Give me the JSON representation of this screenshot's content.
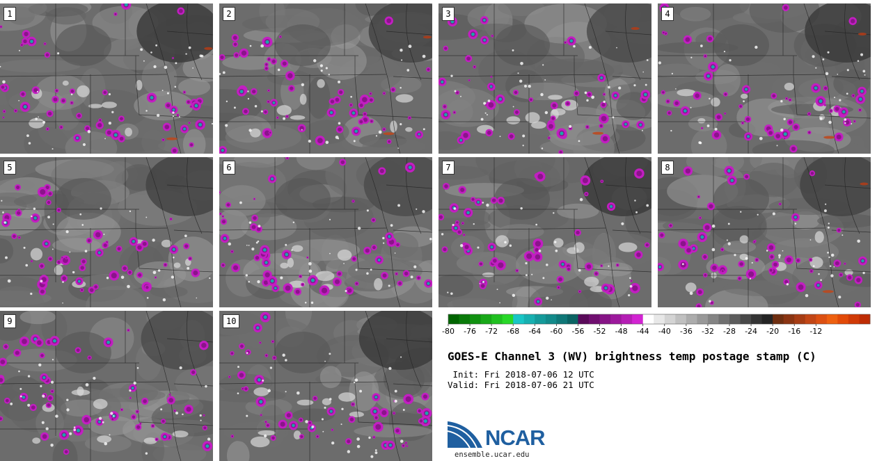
{
  "panels": [
    {
      "label": "1"
    },
    {
      "label": "2"
    },
    {
      "label": "3"
    },
    {
      "label": "4"
    },
    {
      "label": "5"
    },
    {
      "label": "6"
    },
    {
      "label": "7"
    },
    {
      "label": "8"
    },
    {
      "label": "9"
    },
    {
      "label": "10"
    }
  ],
  "colorbar": {
    "ticks": [
      "-80",
      "-76",
      "-72",
      "-68",
      "-64",
      "-60",
      "-56",
      "-52",
      "-48",
      "-44",
      "-40",
      "-36",
      "-32",
      "-28",
      "-24",
      "-20",
      "-16",
      "-12"
    ],
    "colors": [
      "#006400",
      "#0a7a0a",
      "#119111",
      "#18a818",
      "#20c020",
      "#28d828",
      "#19c6c6",
      "#17b0b0",
      "#149a9a",
      "#128a8a",
      "#0f7777",
      "#0b6363",
      "#5a0a5a",
      "#700f70",
      "#861486",
      "#9c199c",
      "#b41eb4",
      "#d223d2",
      "#ffffff",
      "#e8e8e8",
      "#d4d4d4",
      "#c0c0c0",
      "#acacac",
      "#989898",
      "#848484",
      "#707070",
      "#5c5c5c",
      "#484848",
      "#343434",
      "#242424",
      "#6e2e10",
      "#8a3412",
      "#a63c14",
      "#c24616",
      "#dc5012",
      "#ee6010",
      "#e24a08",
      "#d03a06",
      "#be2c04"
    ]
  },
  "title": "GOES-E Channel 3 (WV) brightness temp postage stamp (C)",
  "init_line": " Init: Fri 2018-07-06 12 UTC",
  "valid_line": "Valid: Fri 2018-07-06 21 UTC",
  "logo": {
    "text": "NCAR",
    "url": "ensemble.ucar.edu",
    "brand_color": "#1f5fa0"
  }
}
